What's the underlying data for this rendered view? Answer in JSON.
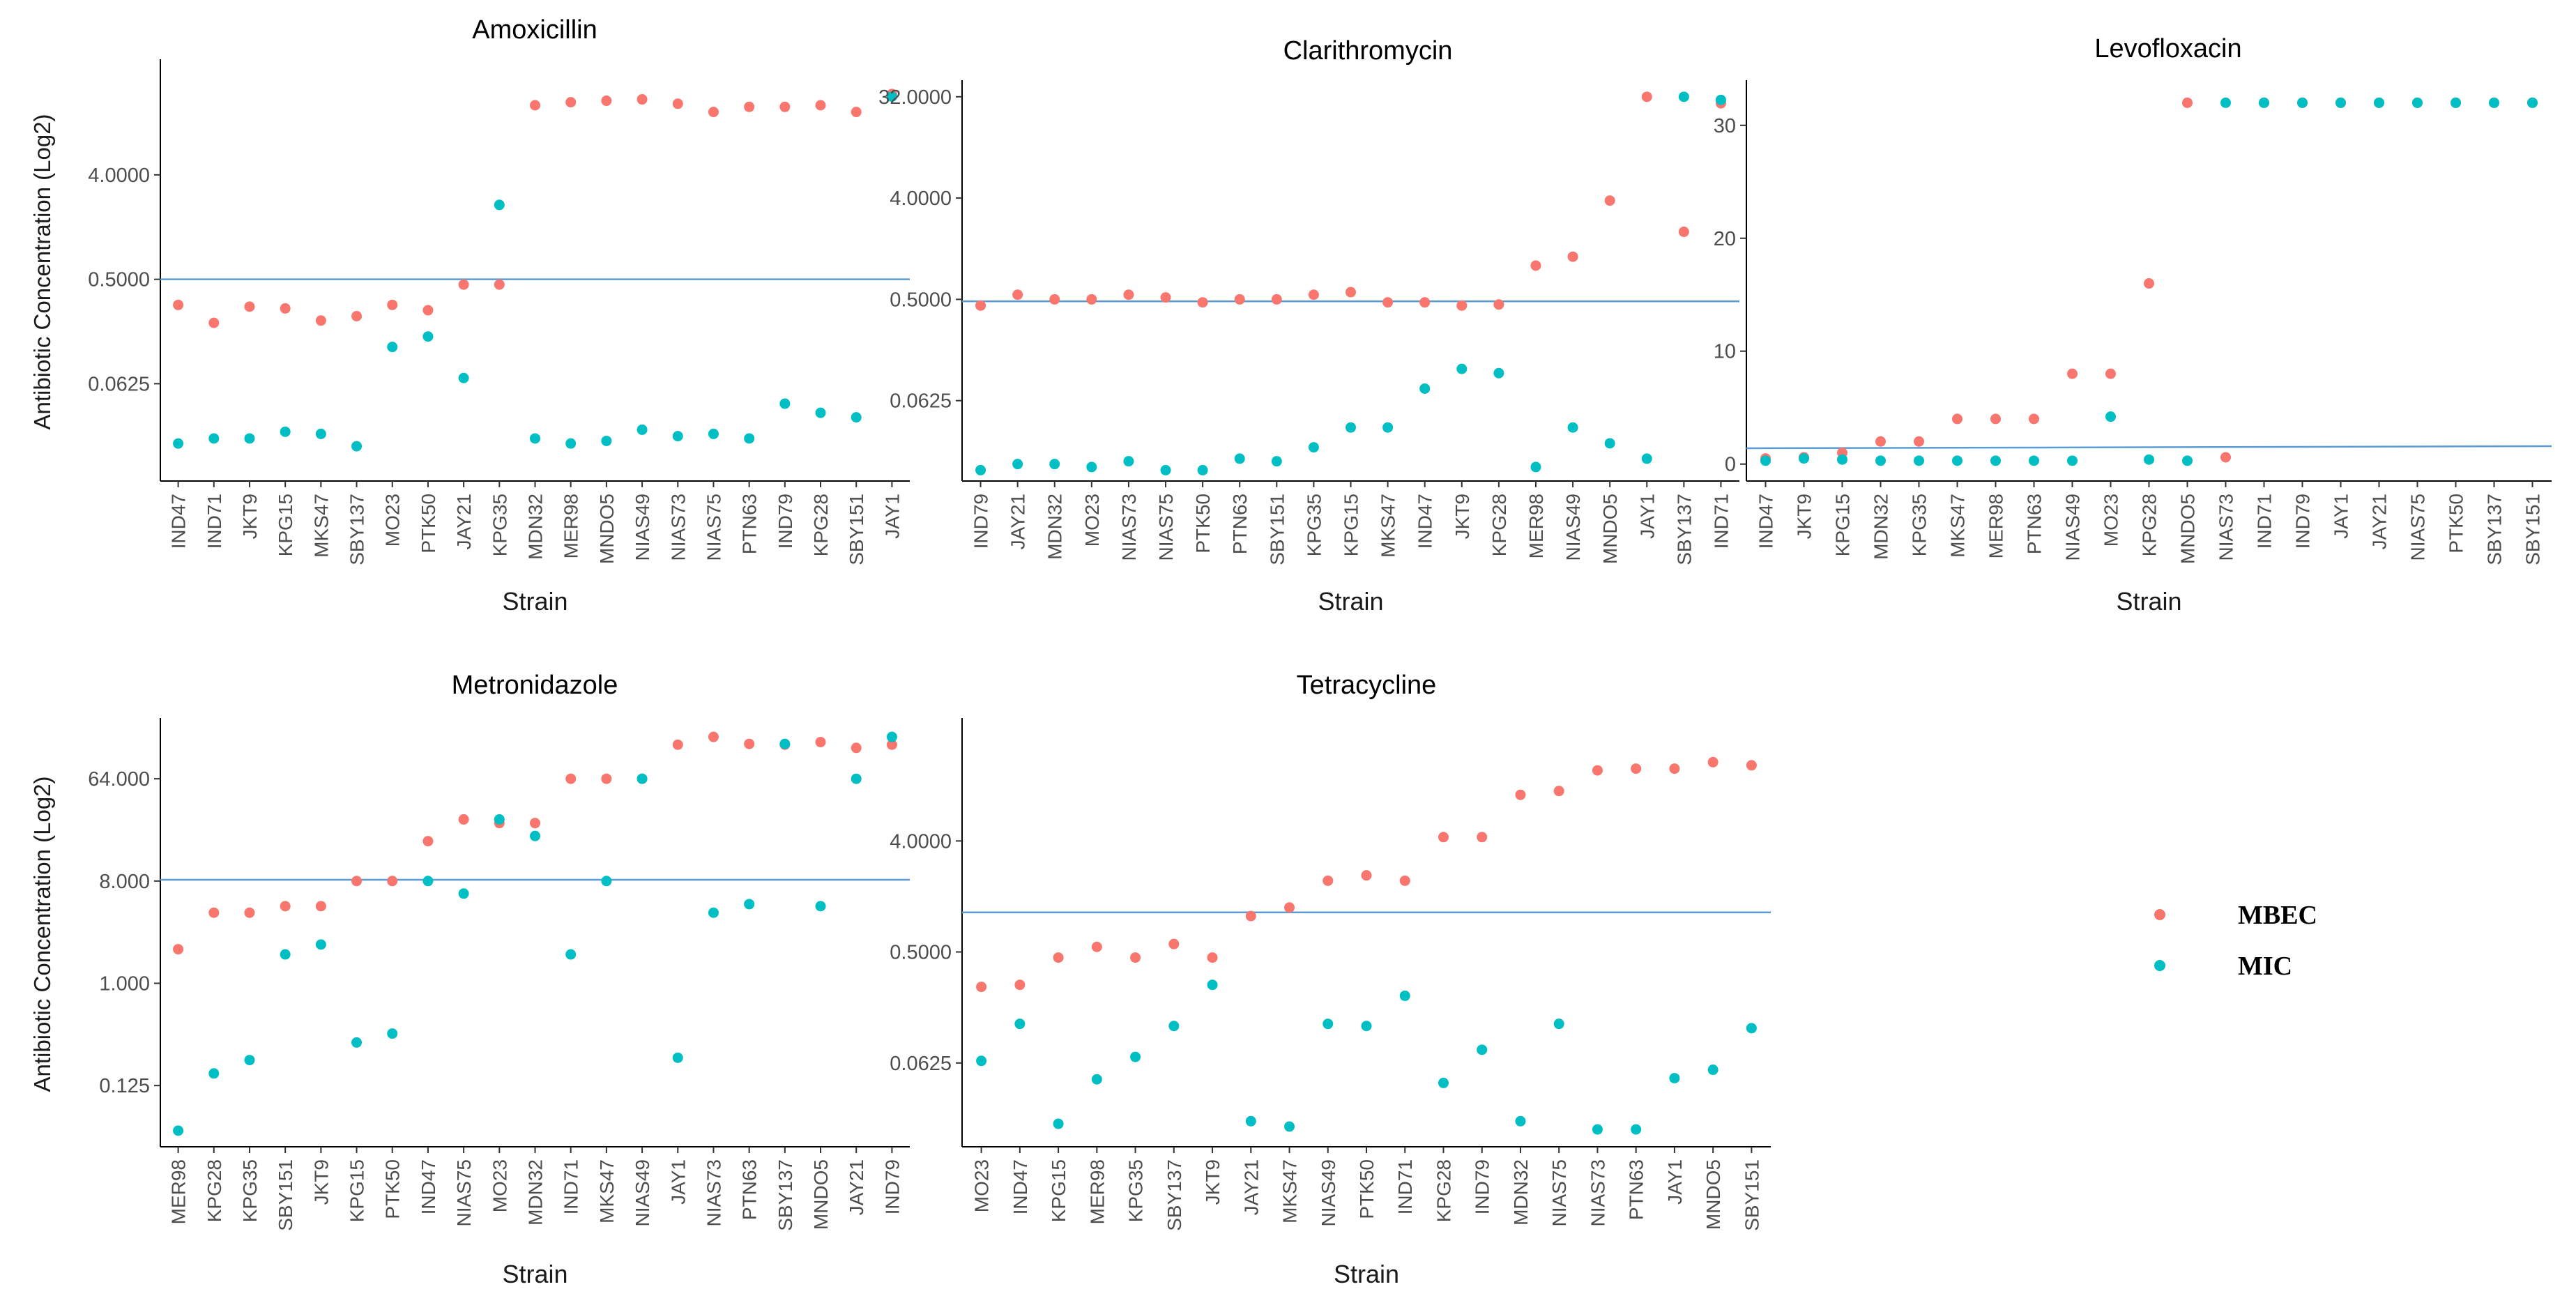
{
  "legend": {
    "items": [
      {
        "label": "MBEC",
        "color": "#F8766D"
      },
      {
        "label": "MIC",
        "color": "#00BFC4"
      }
    ]
  },
  "chart_data": [
    {
      "type": "scatter",
      "title": "Amoxicillin",
      "xlabel": "Strain",
      "ylabel": "Antibiotic Concentration (Log2)",
      "scale": "log2",
      "yticks": [
        0.0625,
        0.5,
        4
      ],
      "yticklabels": [
        "0.0625",
        "0.5000",
        "4.0000"
      ],
      "ylim": [
        0.009,
        40
      ],
      "reference_line": 0.5,
      "categories": [
        "IND47",
        "IND71",
        "JKT9",
        "KPG15",
        "MKS47",
        "SBY137",
        "MO23",
        "PTK50",
        "JAY21",
        "KPG35",
        "MDN32",
        "MER98",
        "MNDO5",
        "NIAS49",
        "NIAS73",
        "NIAS75",
        "PTN63",
        "IND79",
        "KPG28",
        "SBY151",
        "JAY1"
      ],
      "series": [
        {
          "name": "MBEC",
          "values": [
            0.3,
            0.21,
            0.29,
            0.28,
            0.22,
            0.24,
            0.3,
            0.27,
            0.45,
            0.45,
            16,
            17,
            17.5,
            18,
            16.5,
            14,
            15.5,
            15.5,
            16,
            14,
            20
          ]
        },
        {
          "name": "MIC",
          "values": [
            0.019,
            0.021,
            0.021,
            0.024,
            0.023,
            0.018,
            0.13,
            0.16,
            0.07,
            2.2,
            0.021,
            0.019,
            0.02,
            0.025,
            0.022,
            0.023,
            0.021,
            0.042,
            0.035,
            0.032,
            19
          ]
        }
      ]
    },
    {
      "type": "scatter",
      "title": "Clarithromycin",
      "xlabel": "Strain",
      "ylabel": "",
      "scale": "log2",
      "yticks": [
        0.0625,
        0.5,
        4,
        32
      ],
      "yticklabels": [
        "0.0625",
        "0.5000",
        "4.0000",
        "32.0000"
      ],
      "ylim": [
        0.012,
        45
      ],
      "reference_line": 0.48,
      "categories": [
        "IND79",
        "JAY21",
        "MDN32",
        "MO23",
        "NIAS73",
        "NIAS75",
        "PTK50",
        "PTN63",
        "SBY151",
        "KPG35",
        "KPG15",
        "MKS47",
        "IND47",
        "JKT9",
        "KPG28",
        "MER98",
        "NIAS49",
        "MNDO5",
        "JAY1",
        "SBY137",
        "IND71"
      ],
      "series": [
        {
          "name": "MBEC",
          "values": [
            0.44,
            0.55,
            0.5,
            0.5,
            0.55,
            0.52,
            0.47,
            0.5,
            0.5,
            0.55,
            0.58,
            0.47,
            0.47,
            0.44,
            0.45,
            1.0,
            1.2,
            3.8,
            32,
            2.0,
            28
          ]
        },
        {
          "name": "MIC",
          "values": [
            0.015,
            0.017,
            0.017,
            0.016,
            0.018,
            0.015,
            0.015,
            0.019,
            0.018,
            0.024,
            0.036,
            0.036,
            0.08,
            0.12,
            0.11,
            0.016,
            0.036,
            0.026,
            0.019,
            32,
            30
          ]
        }
      ]
    },
    {
      "type": "scatter",
      "title": "Levofloxacin",
      "xlabel": "Strain",
      "ylabel": "",
      "scale": "linear",
      "yticks": [
        0,
        10,
        20,
        30
      ],
      "yticklabels": [
        "0",
        "10",
        "20",
        "30"
      ],
      "ylim": [
        -1.5,
        34
      ],
      "reference_line": 1.4,
      "categories": [
        "IND47",
        "JKT9",
        "KPG15",
        "MDN32",
        "KPG35",
        "MKS47",
        "MER98",
        "PTN63",
        "NIAS49",
        "MO23",
        "KPG28",
        "MNDO5",
        "NIAS73",
        "IND71",
        "IND79",
        "JAY1",
        "JAY21",
        "NIAS75",
        "PTK50",
        "SBY137",
        "SBY151"
      ],
      "series": [
        {
          "name": "MBEC",
          "values": [
            0.5,
            0.6,
            1.0,
            2,
            2,
            4,
            4,
            4,
            8,
            8,
            16,
            32,
            0.6,
            32,
            32,
            32,
            32,
            32,
            32,
            32,
            32
          ]
        },
        {
          "name": "MIC",
          "values": [
            0.3,
            0.5,
            0.4,
            0.3,
            0.3,
            0.3,
            0.3,
            0.3,
            0.3,
            4.2,
            0.4,
            0.3,
            32,
            32,
            32,
            32,
            32,
            32,
            32,
            32,
            32
          ]
        }
      ]
    },
    {
      "type": "scatter",
      "title": "Metronidazole",
      "xlabel": "Strain",
      "ylabel": "Antibiotic Concentration (Log2)",
      "scale": "log2",
      "yticks": [
        0.125,
        1,
        8,
        64
      ],
      "yticklabels": [
        "0.125",
        "1.000",
        "8.000",
        "64.000"
      ],
      "ylim": [
        0.036,
        220
      ],
      "reference_line": 8.2,
      "categories": [
        "MER98",
        "KPG28",
        "KPG35",
        "SBY151",
        "JKT9",
        "KPG15",
        "PTK50",
        "IND47",
        "NIAS75",
        "MO23",
        "MDN32",
        "IND71",
        "MKS47",
        "NIAS49",
        "JAY1",
        "NIAS73",
        "PTN63",
        "SBY137",
        "MNDO5",
        "JAY21",
        "IND79"
      ],
      "series": [
        {
          "name": "MBEC",
          "values": [
            2.0,
            4.2,
            4.2,
            4.8,
            4.8,
            8,
            8,
            18,
            28,
            26,
            26,
            64,
            64,
            64,
            128,
            150,
            130,
            128,
            135,
            120,
            128
          ]
        },
        {
          "name": "MIC",
          "values": [
            0.05,
            0.16,
            0.21,
            1.8,
            2.2,
            0.3,
            0.36,
            8,
            6.2,
            28,
            20,
            1.8,
            8,
            64,
            0.22,
            4.2,
            5,
            130,
            4.8,
            64,
            150
          ]
        }
      ]
    },
    {
      "type": "scatter",
      "title": "Tetracycline",
      "xlabel": "Strain",
      "ylabel": "",
      "scale": "log2",
      "yticks": [
        0.0625,
        0.5,
        4
      ],
      "yticklabels": [
        "0.0625",
        "0.5000",
        "4.0000"
      ],
      "ylim": [
        0.013,
        40
      ],
      "reference_line": 1.05,
      "categories": [
        "MO23",
        "IND47",
        "KPG15",
        "MER98",
        "KPG35",
        "SBY137",
        "JKT9",
        "JAY21",
        "MKS47",
        "NIAS49",
        "PTK50",
        "IND71",
        "KPG28",
        "IND79",
        "MDN32",
        "NIAS75",
        "NIAS73",
        "PTN63",
        "JAY1",
        "MNDO5",
        "SBY151"
      ],
      "series": [
        {
          "name": "MBEC",
          "values": [
            0.26,
            0.27,
            0.45,
            0.55,
            0.45,
            0.58,
            0.45,
            0.98,
            1.15,
            1.9,
            2.1,
            1.9,
            4.3,
            4.3,
            9.5,
            10.2,
            15,
            15.5,
            15.5,
            17.5,
            16.5
          ]
        },
        {
          "name": "MIC",
          "values": [
            0.065,
            0.13,
            0.02,
            0.046,
            0.07,
            0.125,
            0.27,
            0.021,
            0.019,
            0.13,
            0.125,
            0.22,
            0.043,
            0.08,
            0.021,
            0.13,
            0.018,
            0.018,
            0.047,
            0.055,
            0.12
          ]
        }
      ]
    }
  ]
}
